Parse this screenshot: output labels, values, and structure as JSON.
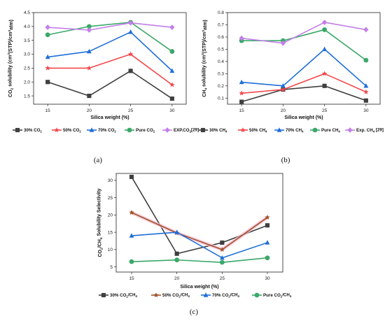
{
  "chart_data": [
    {
      "type": "line",
      "panel_label": "(a)",
      "xlabel": "Silica weight (%)",
      "ylabel": [
        "CO",
        "2",
        " solubility (cm",
        "3",
        "(STP)/cm",
        "3",
        "atm)"
      ],
      "x": [
        15,
        20,
        25,
        30
      ],
      "xlim": [
        13.3,
        31.7
      ],
      "ylim": [
        1.2,
        4.5
      ],
      "yticks": [
        1.5,
        2.0,
        2.5,
        3.0,
        3.5,
        4.0,
        4.5
      ],
      "ytick_labels": [
        "1.5",
        "2.0",
        "2.5",
        "3.0",
        "3.5",
        "4.0",
        "4.5"
      ],
      "xtick_labels": [
        "15",
        "20",
        "25",
        "30"
      ],
      "grid": false,
      "legend_position": "bottom",
      "series": [
        {
          "name": [
            "30% CO",
            "2"
          ],
          "values": [
            2.0,
            1.5,
            2.4,
            1.4
          ],
          "color": "#3f3f3f",
          "marker": "square"
        },
        {
          "name": [
            "50% CO",
            "2"
          ],
          "values": [
            2.5,
            2.5,
            3.0,
            1.9
          ],
          "color": "#f2494c",
          "marker": "star"
        },
        {
          "name": [
            "70% CO",
            "2"
          ],
          "values": [
            2.9,
            3.1,
            3.8,
            2.4
          ],
          "color": "#1f6fd8",
          "marker": "triangle"
        },
        {
          "name": [
            "Pure CO",
            "2"
          ],
          "values": [
            3.7,
            4.0,
            4.15,
            3.1
          ],
          "color": "#3aa869",
          "marker": "circle"
        },
        {
          "name": [
            "EXP.CO",
            "2",
            "[29]"
          ],
          "values": [
            3.97,
            3.87,
            4.13,
            3.97
          ],
          "color": "#c37ee8",
          "marker": "diamond"
        }
      ]
    },
    {
      "type": "line",
      "panel_label": "(b)",
      "xlabel": "Silica weight (%)",
      "ylabel": [
        "CH",
        "4",
        " solubility (cm",
        "3",
        "(STP)/cm",
        "3",
        "atm)"
      ],
      "x": [
        15,
        20,
        25,
        30
      ],
      "xlim": [
        13.3,
        31.7
      ],
      "ylim": [
        0.05,
        0.8
      ],
      "yticks": [
        0.1,
        0.2,
        0.3,
        0.4,
        0.5,
        0.6,
        0.7,
        0.8
      ],
      "ytick_labels": [
        "0.1",
        "0.2",
        "0.3",
        "0.4",
        "0.5",
        "0.6",
        "0.7",
        "0.8"
      ],
      "xtick_labels": [
        "15",
        "20",
        "25",
        "30"
      ],
      "grid": false,
      "legend_position": "bottom",
      "series": [
        {
          "name": [
            "30% CH",
            "4"
          ],
          "values": [
            0.07,
            0.17,
            0.2,
            0.08
          ],
          "color": "#3f3f3f",
          "marker": "square"
        },
        {
          "name": [
            "50% CH",
            "4"
          ],
          "values": [
            0.14,
            0.17,
            0.3,
            0.15
          ],
          "color": "#f2494c",
          "marker": "star"
        },
        {
          "name": [
            "70% CH",
            "4"
          ],
          "values": [
            0.23,
            0.2,
            0.5,
            0.2
          ],
          "color": "#1f6fd8",
          "marker": "triangle"
        },
        {
          "name": [
            "Pure CH",
            "4"
          ],
          "values": [
            0.57,
            0.57,
            0.66,
            0.41
          ],
          "color": "#3aa869",
          "marker": "circle"
        },
        {
          "name": [
            "Exp. CH",
            "4",
            " [29]"
          ],
          "values": [
            0.59,
            0.55,
            0.72,
            0.66
          ],
          "color": "#c37ee8",
          "marker": "diamond"
        }
      ]
    },
    {
      "type": "line",
      "panel_label": "(c)",
      "xlabel": "Silica weight (%)",
      "ylabel": [
        "CO",
        "2",
        "/CH",
        "4",
        " Solubility Selectivity"
      ],
      "x": [
        15,
        20,
        25,
        30
      ],
      "xlim": [
        13.3,
        31.7
      ],
      "ylim": [
        3.5,
        32
      ],
      "yticks": [
        5,
        10,
        15,
        20,
        25,
        30
      ],
      "ytick_labels": [
        "5",
        "10",
        "15",
        "20",
        "25",
        "30"
      ],
      "xtick_labels": [
        "15",
        "20",
        "25",
        "30"
      ],
      "grid": false,
      "legend_position": "bottom",
      "series": [
        {
          "name": [
            "30% CO",
            "2",
            "/CH",
            "4"
          ],
          "values": [
            31.0,
            8.8,
            12.0,
            17.0
          ],
          "color": "#3f3f3f",
          "marker": "square"
        },
        {
          "name": [
            "50% CO",
            "2",
            "/CH",
            "4"
          ],
          "values": [
            20.7,
            14.8,
            10.0,
            19.3
          ],
          "color": "#a0522d",
          "marker": "star",
          "glow": "#f6b9cf"
        },
        {
          "name": [
            "70% CO",
            "2",
            "/CH",
            "4"
          ],
          "values": [
            14.0,
            15.0,
            7.6,
            12.0
          ],
          "color": "#1f6fd8",
          "marker": "triangle"
        },
        {
          "name": [
            "Pure CO",
            "2",
            "/CH",
            "4"
          ],
          "values": [
            6.5,
            7.0,
            6.3,
            7.6
          ],
          "color": "#3aa869",
          "marker": "circle"
        }
      ]
    }
  ]
}
